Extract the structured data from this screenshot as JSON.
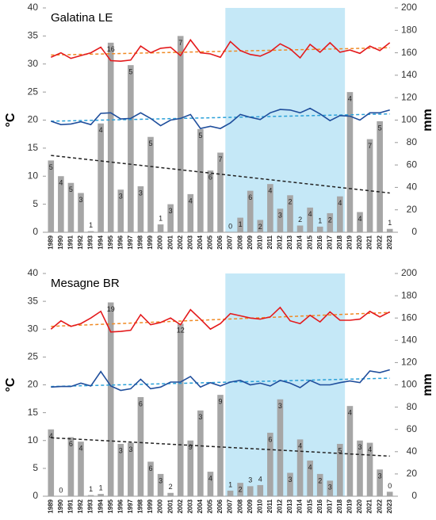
{
  "chart_data": [
    {
      "type": "bar_line",
      "title": "Galatina LE",
      "y_label": "°C",
      "y2_label": "mm",
      "categories": [
        "1989",
        "1990",
        "1991",
        "1992",
        "1993",
        "1994",
        "1995",
        "1996",
        "1997",
        "1998",
        "1999",
        "2000",
        "2001",
        "2002",
        "2003",
        "2004",
        "2005",
        "2006",
        "2007",
        "2008",
        "2009",
        "2010",
        "2011",
        "2012",
        "2013",
        "2014",
        "2015",
        "2016",
        "2017",
        "2018",
        "2019",
        "2020",
        "2021",
        "2022",
        "2023"
      ],
      "ylim": [
        0,
        40
      ],
      "yticks": [
        0,
        5,
        10,
        15,
        20,
        25,
        30,
        35,
        40
      ],
      "y2lim": [
        0,
        200
      ],
      "y2ticks": [
        0,
        20,
        40,
        60,
        80,
        100,
        120,
        140,
        160,
        180,
        200
      ],
      "highlight_range": [
        "2007",
        "2018"
      ],
      "highlight_color": "#c5e8f7",
      "bars": {
        "axis": "y2",
        "color": "#a6a6a6",
        "values": [
          64,
          50,
          44,
          35,
          1,
          97,
          169,
          38,
          149,
          41,
          85,
          7,
          25,
          175,
          34,
          92,
          55,
          71,
          0,
          13,
          37,
          11,
          43,
          21,
          33,
          6,
          22,
          5,
          17,
          32,
          125,
          18,
          83,
          99,
          3
        ],
        "annotations": [
          5,
          4,
          5,
          3,
          1,
          4,
          16,
          3,
          5,
          3,
          5,
          1,
          3,
          7,
          4,
          5,
          6,
          7,
          0,
          1,
          6,
          2,
          4,
          3,
          2,
          2,
          4,
          1,
          2,
          4,
          4,
          4,
          7,
          5,
          1
        ]
      },
      "series": [
        {
          "color": "#e41a1c",
          "values": [
            31.2,
            32,
            31,
            31.5,
            32,
            33,
            30.6,
            30.5,
            30.7,
            33.2,
            32,
            32.8,
            33,
            31.5,
            34.3,
            32,
            31.8,
            31.2,
            34,
            32.4,
            31.7,
            31.4,
            32.2,
            33.6,
            32.7,
            31.1,
            33.5,
            32.1,
            33.8,
            32.1,
            32.5,
            31.9,
            33.2,
            32.4,
            33.8
          ]
        },
        {
          "color": "#1f4e9c",
          "values": [
            19.8,
            19.2,
            19.3,
            19.7,
            19.2,
            21.2,
            21.3,
            20.2,
            20.3,
            21.3,
            20.3,
            19,
            20,
            20.3,
            21,
            18.5,
            18.9,
            18.5,
            19.5,
            21,
            20.5,
            20.1,
            21.3,
            21.9,
            21.8,
            21.3,
            22.1,
            21.1,
            19.9,
            20.8,
            20.7,
            20,
            21.3,
            21.3,
            21.8
          ]
        }
      ],
      "trends": [
        {
          "color": "#f08a24",
          "values": [
            31.6,
            32.9
          ]
        },
        {
          "color": "#2aa0d8",
          "values": [
            19.8,
            21.1
          ]
        },
        {
          "color": "#222222",
          "axis": "y2",
          "values": [
            68.5,
            35
          ]
        }
      ]
    },
    {
      "type": "bar_line",
      "title": "Mesagne BR",
      "y_label": "°C",
      "y2_label": "mm",
      "categories": [
        "1989",
        "1990",
        "1991",
        "1992",
        "1993",
        "1994",
        "1995",
        "1996",
        "1997",
        "1998",
        "1999",
        "2000",
        "2001",
        "2002",
        "2003",
        "2004",
        "2005",
        "2006",
        "2007",
        "2008",
        "2009",
        "2010",
        "2011",
        "2012",
        "2013",
        "2014",
        "2015",
        "2016",
        "2017",
        "2018",
        "2019",
        "2020",
        "2021",
        "2022",
        "2023"
      ],
      "ylim": [
        0,
        40
      ],
      "yticks": [
        0,
        5,
        10,
        15,
        20,
        25,
        30,
        35,
        40
      ],
      "y2lim": [
        0,
        200
      ],
      "y2ticks": [
        0,
        20,
        40,
        60,
        80,
        100,
        120,
        140,
        160,
        180,
        200
      ],
      "highlight_range": [
        "2007",
        "2018"
      ],
      "highlight_color": "#c5e8f7",
      "bars": {
        "axis": "y2",
        "color": "#a6a6a6",
        "values": [
          60,
          0,
          53,
          49,
          1,
          2,
          174,
          47,
          48,
          89,
          31,
          20,
          3,
          155,
          50,
          77,
          22,
          91,
          5,
          12,
          9,
          10,
          57,
          87,
          21,
          51,
          32,
          20,
          14,
          47,
          81,
          50,
          48,
          24,
          4
        ],
        "annotations": [
          4,
          0,
          6,
          4,
          1,
          1,
          19,
          3,
          3,
          6,
          6,
          3,
          2,
          12,
          9,
          3,
          4,
          9,
          1,
          2,
          3,
          4,
          6,
          3,
          3,
          4,
          4,
          2,
          3,
          5,
          4,
          3,
          4,
          3,
          0
        ]
      },
      "series": [
        {
          "color": "#e41a1c",
          "values": [
            30,
            31.5,
            30.5,
            31,
            32,
            33.2,
            29.5,
            29.6,
            29.8,
            32.6,
            30.8,
            31.2,
            32,
            30.8,
            33.5,
            31.8,
            30,
            31,
            32.8,
            32.4,
            32,
            31.8,
            32.2,
            33.9,
            31.5,
            31,
            32.5,
            31.3,
            33.1,
            31.6,
            31.6,
            31.8,
            33.2,
            32.2,
            33.1
          ]
        },
        {
          "color": "#1f4e9c",
          "values": [
            19.6,
            19.7,
            19.7,
            20.3,
            19.8,
            22.4,
            19.8,
            19,
            19.3,
            21,
            19.3,
            19.6,
            20.5,
            20.5,
            21.5,
            19.6,
            20.4,
            19.8,
            20.5,
            20.8,
            20,
            20.3,
            19.8,
            20.8,
            20.3,
            19.5,
            20.8,
            20,
            20,
            20.4,
            20.7,
            20.4,
            22.5,
            22.2,
            22.7
          ]
        }
      ],
      "trends": [
        {
          "color": "#f08a24",
          "values": [
            30.5,
            33
          ]
        },
        {
          "color": "#2aa0d8",
          "values": [
            19.7,
            21.2
          ]
        },
        {
          "color": "#222222",
          "axis": "y2",
          "values": [
            52.5,
            36
          ]
        }
      ]
    }
  ]
}
